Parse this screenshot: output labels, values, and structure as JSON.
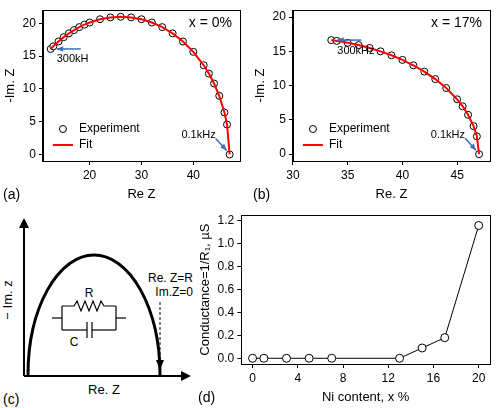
{
  "chart_data": [
    {
      "type": "scatter",
      "panel": "(a)",
      "title": "x = 0%",
      "x_label": "Re Z",
      "y_label": "-Im. Z",
      "xlim": [
        11,
        49
      ],
      "xticks": [
        20,
        30,
        40
      ],
      "ylim": [
        -1,
        22
      ],
      "yticks": [
        0,
        5,
        10,
        15,
        20
      ],
      "grid": false,
      "legend": "lower left",
      "annotations": [
        "300kH",
        "0.1kHz"
      ],
      "series": [
        {
          "name": "Experiment",
          "type": "scatter",
          "marker": "circle",
          "color": "#000000",
          "x": [
            12.5,
            13,
            14,
            15,
            16,
            17,
            18,
            19,
            20,
            22,
            24,
            26,
            28,
            30,
            32,
            34,
            36,
            38,
            40,
            42,
            43,
            44,
            45,
            46,
            46.5,
            47
          ],
          "values": [
            16.09,
            16.49,
            17.23,
            17.89,
            18.47,
            18.97,
            19.42,
            19.8,
            20.12,
            20.62,
            20.9,
            21,
            20.9,
            20.62,
            20.12,
            19.42,
            18.47,
            17.23,
            15.65,
            13.6,
            12.33,
            10.82,
            8.94,
            6.4,
            4.56,
            0
          ]
        },
        {
          "name": "Fit",
          "type": "line",
          "line_style": "solid",
          "color": "#ff0000",
          "x": [
            12.5,
            13,
            14,
            15,
            16,
            17,
            18,
            19,
            20,
            22,
            24,
            26,
            28,
            30,
            32,
            34,
            36,
            38,
            40,
            42,
            43,
            44,
            45,
            46,
            46.5,
            47
          ],
          "values": [
            16.09,
            16.49,
            17.23,
            17.89,
            18.47,
            18.97,
            19.42,
            19.8,
            20.12,
            20.62,
            20.9,
            21,
            20.9,
            20.62,
            20.12,
            19.42,
            18.47,
            17.23,
            15.65,
            13.6,
            12.33,
            10.82,
            8.94,
            6.4,
            4.56,
            0
          ]
        }
      ]
    },
    {
      "type": "scatter",
      "panel": "(b)",
      "title": "x = 17%",
      "x_label": "Re. Z",
      "y_label": "-Im. Z",
      "xlim": [
        30,
        48
      ],
      "xticks": [
        30,
        35,
        40,
        45
      ],
      "ylim": [
        -1,
        21
      ],
      "yticks": [
        0,
        5,
        10,
        15,
        20
      ],
      "grid": false,
      "legend": "lower left",
      "annotations": [
        "300kHz",
        "0.1kHz"
      ],
      "series": [
        {
          "name": "Experiment",
          "type": "scatter",
          "marker": "circle",
          "color": "#000000",
          "x": [
            33.5,
            34,
            35,
            36,
            37,
            38,
            39,
            40,
            41,
            42,
            43,
            44,
            45,
            45.5,
            46,
            46.5,
            46.8,
            47
          ],
          "values": [
            16.64,
            16.52,
            16.25,
            15.91,
            15.49,
            15,
            14.42,
            13.75,
            12.96,
            12.04,
            10.95,
            9.64,
            8,
            6.98,
            5.74,
            4.09,
            2.6,
            0
          ]
        },
        {
          "name": "Fit",
          "type": "line",
          "line_style": "solid",
          "color": "#ff0000",
          "x": [
            33.5,
            34,
            35,
            36,
            37,
            38,
            39,
            40,
            41,
            42,
            43,
            44,
            45,
            45.5,
            46,
            46.5,
            46.8,
            47
          ],
          "values": [
            16.64,
            16.52,
            16.25,
            15.91,
            15.49,
            15,
            14.42,
            13.75,
            12.96,
            12.04,
            10.95,
            9.64,
            8,
            6.98,
            5.74,
            4.09,
            2.6,
            0
          ]
        }
      ]
    },
    {
      "type": "line",
      "panel": "(d)",
      "x_label": "Ni content, x %",
      "y_label": "Conductance=1/R₁, µS",
      "xlim": [
        -1,
        21
      ],
      "xticks": [
        0,
        4,
        8,
        12,
        16,
        20
      ],
      "ylim": [
        -0.05,
        1.25
      ],
      "yticks": [
        {
          "value": 0,
          "label": "0.0"
        },
        0.2,
        0.4,
        0.6,
        0.8,
        {
          "value": 1,
          "label": "1.0"
        },
        1.2
      ],
      "grid": false,
      "series": [
        {
          "name": "Conductance",
          "type": "line",
          "marker": "circle",
          "color": "#000000",
          "x": [
            0,
            1,
            3,
            5,
            7,
            13,
            15,
            17,
            20
          ],
          "values": [
            0,
            0,
            0,
            0,
            0,
            0,
            0.09,
            0.18,
            1.16
          ]
        }
      ]
    }
  ],
  "diagram": {
    "panel": "(c)",
    "x_label": "Re. Z",
    "y_label": "− Im. z",
    "annotations": [
      "Re. Z=R",
      "Im.Z=0"
    ],
    "circuit": {
      "resistor": "R",
      "capacitor": "C"
    }
  }
}
